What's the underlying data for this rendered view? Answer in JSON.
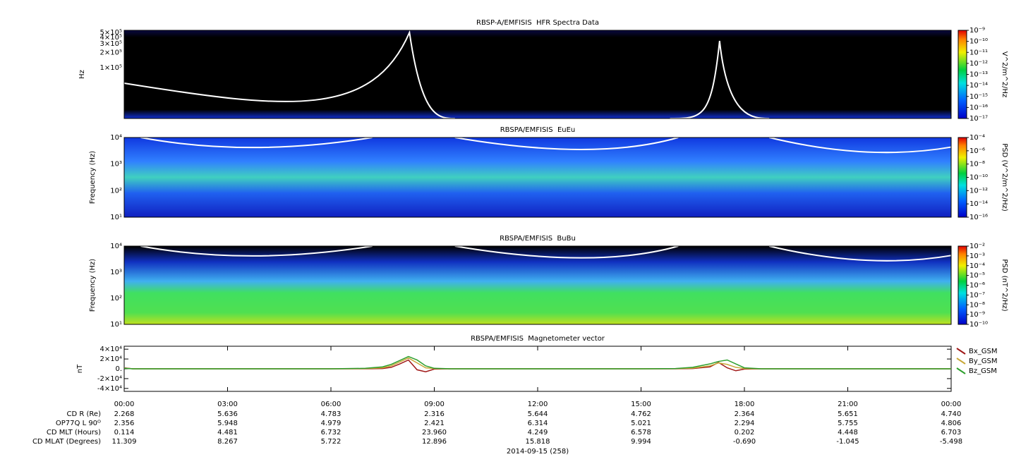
{
  "chart_data": [
    {
      "type": "spectrogram",
      "title": "RBSP-A/EMFISIS  HFR Spectra Data",
      "ylabel": "Hz",
      "yscale": "log",
      "ylim": [
        10000,
        550000
      ],
      "yticks": [
        {
          "value": 100000,
          "label": "1×10⁵"
        },
        {
          "value": 200000,
          "label": "2×10⁵"
        },
        {
          "value": 300000,
          "label": "3×10⁵"
        },
        {
          "value": 400000,
          "label": "4×10⁵"
        },
        {
          "value": 500000,
          "label": "5×10⁵"
        }
      ],
      "zlabel": "V^2/m^2/Hz",
      "zscale": "log",
      "zlim": [
        1e-17,
        1e-09
      ],
      "zticks": [
        {
          "value": 1e-17,
          "label": "10⁻¹⁷"
        },
        {
          "value": 1e-16,
          "label": "10⁻¹⁶"
        },
        {
          "value": 1e-15,
          "label": "10⁻¹⁵"
        },
        {
          "value": 1e-14,
          "label": "10⁻¹⁴"
        },
        {
          "value": 1e-13,
          "label": "10⁻¹³"
        },
        {
          "value": 1e-12,
          "label": "10⁻¹²"
        },
        {
          "value": 1e-11,
          "label": "10⁻¹¹"
        },
        {
          "value": 1e-10,
          "label": "10⁻¹⁰"
        },
        {
          "value": 1e-09,
          "label": "10⁻⁹"
        }
      ]
    },
    {
      "type": "spectrogram",
      "title": "RBSPA/EMFISIS  EuEu",
      "ylabel": "Frequency (Hz)",
      "yscale": "log",
      "ylim": [
        10,
        10000
      ],
      "yticks": [
        {
          "value": 10,
          "label": "10¹"
        },
        {
          "value": 100,
          "label": "10²"
        },
        {
          "value": 1000,
          "label": "10³"
        },
        {
          "value": 10000,
          "label": "10⁴"
        }
      ],
      "zlabel": "PSD (V^2/m^2/Hz)",
      "zscale": "log",
      "zlim": [
        1e-16,
        0.0001
      ],
      "zticks": [
        {
          "value": 1e-16,
          "label": "10⁻¹⁶"
        },
        {
          "value": 1e-14,
          "label": "10⁻¹⁴"
        },
        {
          "value": 1e-12,
          "label": "10⁻¹²"
        },
        {
          "value": 1e-10,
          "label": "10⁻¹⁰"
        },
        {
          "value": 1e-08,
          "label": "10⁻⁸"
        },
        {
          "value": 1e-06,
          "label": "10⁻⁶"
        },
        {
          "value": 0.0001,
          "label": "10⁻⁴"
        }
      ]
    },
    {
      "type": "spectrogram",
      "title": "RBSPA/EMFISIS  BuBu",
      "ylabel": "Frequency (Hz)",
      "yscale": "log",
      "ylim": [
        10,
        10000
      ],
      "yticks": [
        {
          "value": 10,
          "label": "10¹"
        },
        {
          "value": 100,
          "label": "10²"
        },
        {
          "value": 1000,
          "label": "10³"
        },
        {
          "value": 10000,
          "label": "10⁴"
        }
      ],
      "zlabel": "PSD (nT^2/Hz)",
      "zscale": "log",
      "zlim": [
        1e-10,
        0.01
      ],
      "zticks": [
        {
          "value": 1e-10,
          "label": "10⁻¹⁰"
        },
        {
          "value": 1e-09,
          "label": "10⁻⁹"
        },
        {
          "value": 1e-08,
          "label": "10⁻⁸"
        },
        {
          "value": 1e-07,
          "label": "10⁻⁷"
        },
        {
          "value": 1e-06,
          "label": "10⁻⁶"
        },
        {
          "value": 1e-05,
          "label": "10⁻⁵"
        },
        {
          "value": 0.0001,
          "label": "10⁻⁴"
        },
        {
          "value": 0.001,
          "label": "10⁻³"
        },
        {
          "value": 0.01,
          "label": "10⁻²"
        }
      ]
    },
    {
      "type": "line",
      "title": "RBSPA/EMFISIS  Magnetometer vector",
      "ylabel": "nT",
      "ylim": [
        -46000,
        46000
      ],
      "yticks": [
        {
          "value": -40000,
          "label": "-4×10⁴"
        },
        {
          "value": -20000,
          "label": "-2×10⁴"
        },
        {
          "value": 0,
          "label": "0."
        },
        {
          "value": 20000,
          "label": "2×10⁴"
        },
        {
          "value": 40000,
          "label": "4×10⁴"
        }
      ],
      "xlim": [
        0,
        24
      ],
      "xticks": [
        {
          "value": 0,
          "label": "00:00"
        },
        {
          "value": 3,
          "label": "03:00"
        },
        {
          "value": 6,
          "label": "06:00"
        },
        {
          "value": 9,
          "label": "09:00"
        },
        {
          "value": 12,
          "label": "12:00"
        },
        {
          "value": 15,
          "label": "15:00"
        },
        {
          "value": 18,
          "label": "18:00"
        },
        {
          "value": 21,
          "label": "21:00"
        },
        {
          "value": 24,
          "label": "00:00"
        }
      ],
      "x": [
        0,
        0.25,
        1,
        3,
        6,
        7,
        7.5,
        7.75,
        8,
        8.25,
        8.5,
        8.75,
        9,
        9.5,
        12,
        15,
        16,
        16.5,
        17,
        17.25,
        17.5,
        17.75,
        18,
        18.5,
        21,
        24
      ],
      "series": [
        {
          "name": "Bx_GSM",
          "color": "#a01818",
          "values": [
            2000,
            0,
            0,
            0,
            0,
            0,
            500,
            3000,
            10000,
            18000,
            -2000,
            -6000,
            -500,
            0,
            0,
            0,
            0,
            500,
            4000,
            13000,
            2000,
            -4000,
            -500,
            0,
            0,
            0
          ]
        },
        {
          "name": "By_GSM",
          "color": "#c8a838",
          "values": [
            1500,
            0,
            0,
            0,
            0,
            500,
            2000,
            6000,
            14000,
            22000,
            12000,
            2000,
            500,
            0,
            0,
            0,
            300,
            1500,
            6000,
            12000,
            9000,
            3000,
            500,
            0,
            0,
            0
          ]
        },
        {
          "name": "Bz_GSM",
          "color": "#2ea02e",
          "values": [
            1000,
            0,
            0,
            0,
            0,
            1000,
            4000,
            9000,
            17000,
            25000,
            18000,
            6000,
            1000,
            0,
            0,
            0,
            500,
            3000,
            10000,
            15000,
            18000,
            10000,
            2000,
            0,
            0,
            0
          ]
        }
      ]
    }
  ],
  "ephemeris": {
    "rows": [
      {
        "label": "CD R (Re)",
        "values": [
          "2.268",
          "5.636",
          "4.783",
          "2.316",
          "5.644",
          "4.762",
          "2.364",
          "5.651",
          "4.740"
        ]
      },
      {
        "label": "OP77Q L 90ᴼ",
        "values": [
          "2.356",
          "5.948",
          "4.979",
          "2.421",
          "6.314",
          "5.021",
          "2.294",
          "5.755",
          "4.806"
        ]
      },
      {
        "label": "CD MLT (Hours)",
        "values": [
          "0.114",
          "4.481",
          "6.732",
          "23.960",
          "4.249",
          "6.578",
          "0.202",
          "4.448",
          "6.703"
        ]
      },
      {
        "label": "CD MLAT (Degrees)",
        "values": [
          "11.309",
          "8.267",
          "5.722",
          "12.896",
          "15.818",
          "9.994",
          "-0.690",
          "-1.045",
          "-5.498"
        ]
      }
    ],
    "date": "2014-09-15 (258)"
  }
}
